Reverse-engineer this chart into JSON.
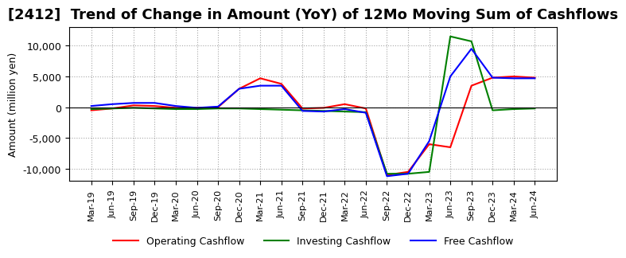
{
  "title": "[2412]  Trend of Change in Amount (YoY) of 12Mo Moving Sum of Cashflows",
  "ylabel": "Amount (million yen)",
  "x_labels": [
    "Mar-19",
    "Jun-19",
    "Sep-19",
    "Dec-19",
    "Mar-20",
    "Jun-20",
    "Sep-20",
    "Dec-20",
    "Mar-21",
    "Jun-21",
    "Sep-21",
    "Dec-21",
    "Mar-22",
    "Jun-22",
    "Sep-22",
    "Dec-22",
    "Mar-23",
    "Jun-23",
    "Sep-23",
    "Dec-23",
    "Mar-24",
    "Jun-24"
  ],
  "operating": [
    -500,
    -200,
    300,
    200,
    -100,
    -100,
    0,
    3000,
    4700,
    3800,
    -200,
    -100,
    500,
    -200,
    -11000,
    -10500,
    -6000,
    -6500,
    3500,
    4800,
    5000,
    4800
  ],
  "investing": [
    -300,
    -200,
    -100,
    -200,
    -300,
    -300,
    -200,
    -200,
    -300,
    -400,
    -500,
    -600,
    -700,
    -800,
    -10800,
    -10800,
    -10500,
    11500,
    10700,
    -500,
    -300,
    -200
  ],
  "free": [
    200,
    500,
    700,
    700,
    200,
    -100,
    100,
    3000,
    3500,
    3500,
    -600,
    -700,
    -300,
    -900,
    -11200,
    -10800,
    -5500,
    5000,
    9500,
    4800,
    4700,
    4700
  ],
  "ylim": [
    -12000,
    13000
  ],
  "yticks": [
    -10000,
    -5000,
    0,
    5000,
    10000
  ],
  "operating_color": "#ff0000",
  "investing_color": "#008000",
  "free_color": "#0000ff",
  "background_color": "#ffffff",
  "title_fontsize": 13,
  "legend_labels": [
    "Operating Cashflow",
    "Investing Cashflow",
    "Free Cashflow"
  ]
}
